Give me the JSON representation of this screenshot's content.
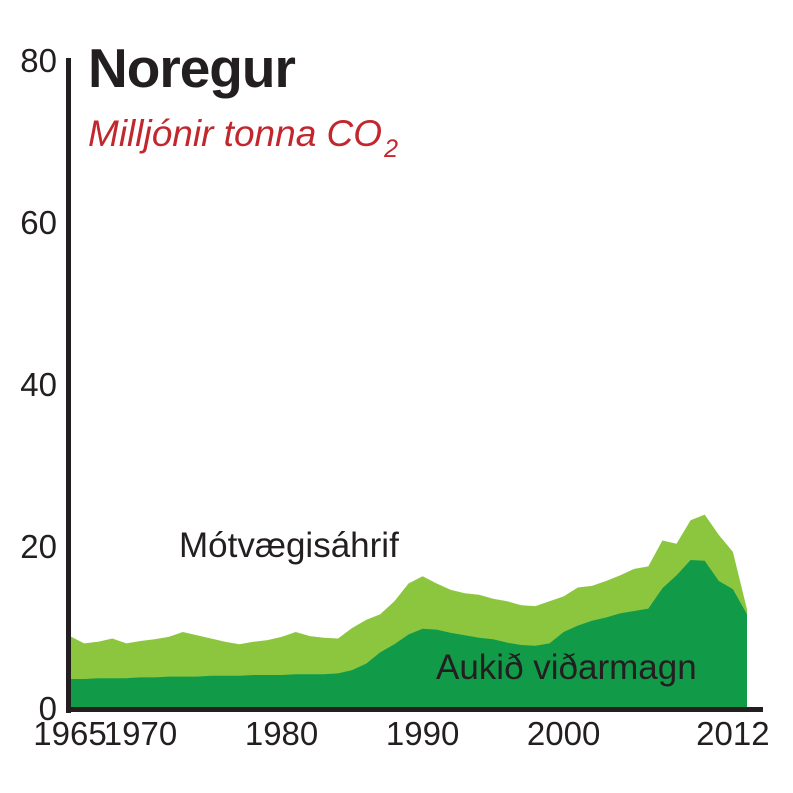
{
  "chart_data": {
    "type": "area",
    "title": "Noregur",
    "subtitle": "Milljónir tonna CO₂",
    "subtitle_base": "Milljónir tonna CO",
    "subtitle_sub": "2",
    "subtitle_color": "#C1272D",
    "axis_color": "#231F20",
    "xlabel": "",
    "ylabel": "Milljónir tonna CO₂",
    "ylim": [
      0,
      80
    ],
    "yticks": [
      80,
      60,
      40,
      20,
      0
    ],
    "xticks": [
      1965,
      1970,
      1980,
      1990,
      2000,
      2012
    ],
    "grid": false,
    "legend_position": "inline-annotations",
    "x": [
      1965,
      1966,
      1967,
      1968,
      1969,
      1970,
      1971,
      1972,
      1973,
      1974,
      1975,
      1976,
      1977,
      1978,
      1979,
      1980,
      1981,
      1982,
      1983,
      1984,
      1985,
      1986,
      1987,
      1988,
      1989,
      1990,
      1991,
      1992,
      1993,
      1994,
      1995,
      1996,
      1997,
      1998,
      1999,
      2000,
      2001,
      2002,
      2003,
      2004,
      2005,
      2006,
      2007,
      2008,
      2009,
      2010,
      2011,
      2012,
      2013
    ],
    "series": [
      {
        "name": "Mótvægisáhrif",
        "role": "total-upper-band",
        "color": "#8CC63E",
        "values": [
          9.0,
          8.1,
          8.3,
          8.7,
          8.1,
          8.4,
          8.6,
          8.9,
          9.5,
          9.1,
          8.7,
          8.3,
          8.0,
          8.3,
          8.5,
          8.9,
          9.5,
          9.0,
          8.8,
          8.7,
          10.0,
          11.0,
          11.7,
          13.3,
          15.5,
          16.4,
          15.5,
          14.7,
          14.3,
          14.1,
          13.6,
          13.3,
          12.8,
          12.7,
          13.3,
          13.9,
          15.0,
          15.2,
          15.8,
          16.5,
          17.3,
          17.6,
          20.8,
          20.4,
          23.3,
          24.0,
          21.5,
          19.4,
          12.3
        ]
      },
      {
        "name": "Aukið viðarmagn",
        "role": "lower-component",
        "color": "#119B49",
        "values": [
          3.7,
          3.7,
          3.8,
          3.8,
          3.8,
          3.9,
          3.9,
          4.0,
          4.0,
          4.0,
          4.1,
          4.1,
          4.1,
          4.2,
          4.2,
          4.2,
          4.3,
          4.3,
          4.3,
          4.4,
          4.8,
          5.6,
          7.0,
          8.0,
          9.2,
          9.9,
          9.8,
          9.4,
          9.1,
          8.8,
          8.6,
          8.2,
          7.9,
          7.8,
          8.1,
          9.5,
          10.3,
          10.9,
          11.3,
          11.8,
          12.1,
          12.4,
          14.9,
          16.5,
          18.4,
          18.3,
          15.8,
          14.8,
          11.7
        ]
      }
    ]
  }
}
